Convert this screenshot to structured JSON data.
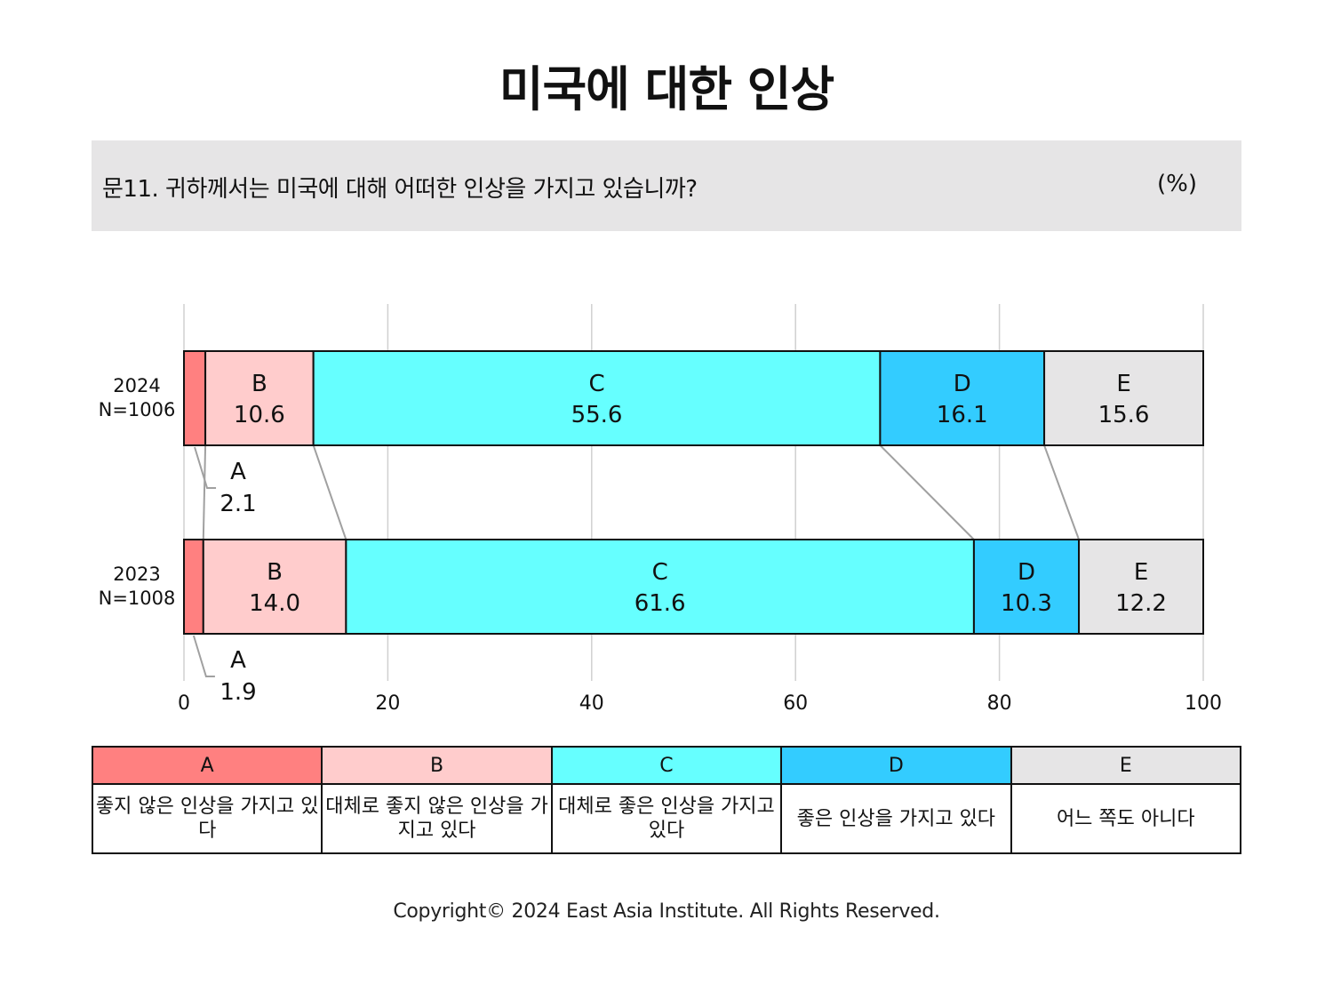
{
  "title": "미국에 대한 인상",
  "question": {
    "text": "문11. 귀하께서는 미국에 대해 어떠한 인상을 가지고 있습니까?",
    "unit": "(%)"
  },
  "chart_data": {
    "type": "bar",
    "orientation": "horizontal",
    "stacked": true,
    "xlim": [
      0,
      100
    ],
    "x_ticks": [
      "0",
      "20",
      "40",
      "60",
      "80",
      "100"
    ],
    "grid": true,
    "rows": [
      {
        "label": "2024",
        "n_label": "N=1006",
        "segments": [
          {
            "key": "A",
            "value": 2.1,
            "label": "2.1"
          },
          {
            "key": "B",
            "value": 10.6,
            "label": "10.6"
          },
          {
            "key": "C",
            "value": 55.6,
            "label": "55.6"
          },
          {
            "key": "D",
            "value": 16.1,
            "label": "16.1"
          },
          {
            "key": "E",
            "value": 15.6,
            "label": "15.6"
          }
        ]
      },
      {
        "label": "2023",
        "n_label": "N=1008",
        "segments": [
          {
            "key": "A",
            "value": 1.9,
            "label": "1.9"
          },
          {
            "key": "B",
            "value": 14.0,
            "label": "14.0"
          },
          {
            "key": "C",
            "value": 61.6,
            "label": "61.6"
          },
          {
            "key": "D",
            "value": 10.3,
            "label": "10.3"
          },
          {
            "key": "E",
            "value": 12.2,
            "label": "12.2"
          }
        ]
      }
    ]
  },
  "legend": [
    {
      "key": "A",
      "description": "좋지 않은 인상을 가지고 있다",
      "color": "#ff8080"
    },
    {
      "key": "B",
      "description": "대체로 좋지 않은 인상을 가지고 있다",
      "color": "#ffcccc"
    },
    {
      "key": "C",
      "description": "대체로 좋은 인상을 가지고 있다",
      "color": "#66ffff"
    },
    {
      "key": "D",
      "description": "좋은 인상을 가지고 있다",
      "color": "#33ccff"
    },
    {
      "key": "E",
      "description": "어느 쪽도 아니다",
      "color": "#e6e5e6"
    }
  ],
  "copyright": "Copyright© 2024 East Asia Institute. All Rights Reserved."
}
